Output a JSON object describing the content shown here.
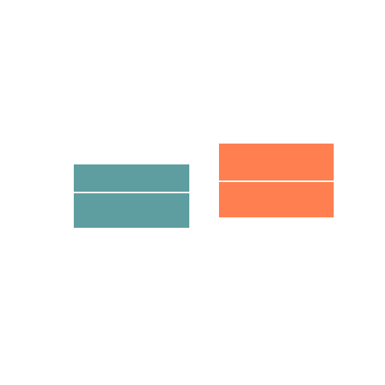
{
  "boxes": [
    {
      "color": "#5f9ea0"
    },
    {
      "color": "#ff7f50"
    }
  ]
}
